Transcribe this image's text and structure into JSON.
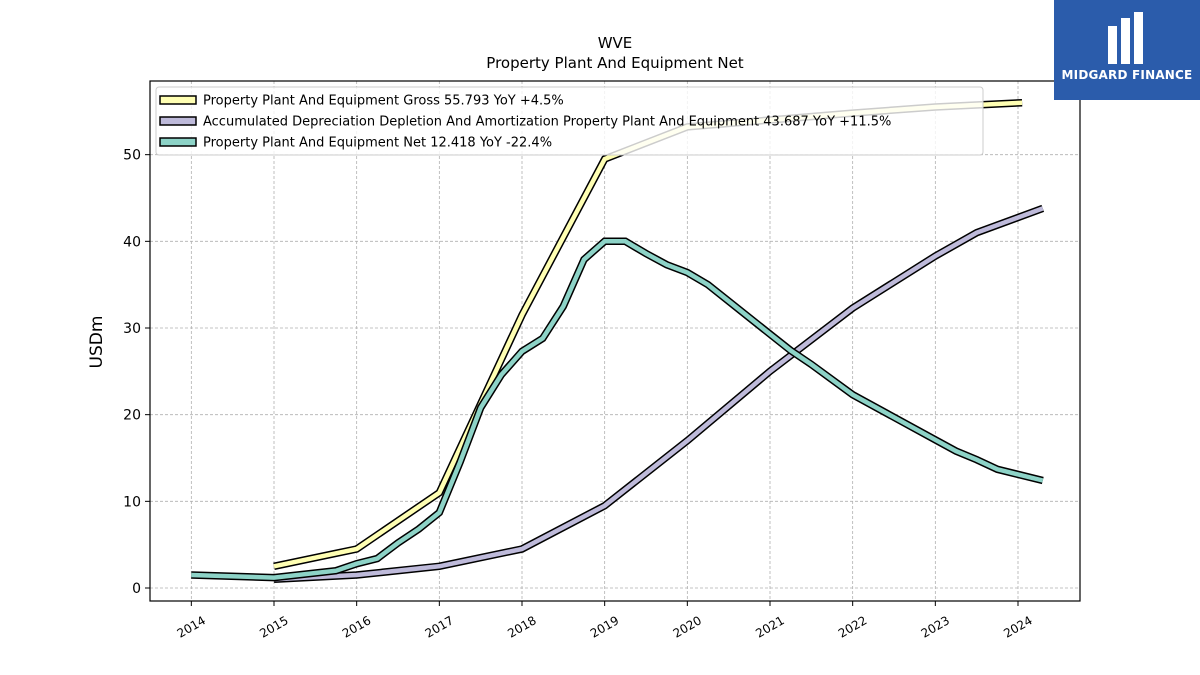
{
  "chart_data": {
    "type": "line",
    "title": "WVE",
    "subtitle": "Property Plant And Equipment Net",
    "ylabel": "USDm",
    "xlabel": "",
    "xlim": [
      2013.5,
      2024.75
    ],
    "ylim": [
      -1.5,
      58.5
    ],
    "x_ticks": [
      "2014",
      "2015",
      "2016",
      "2017",
      "2018",
      "2019",
      "2020",
      "2021",
      "2022",
      "2023",
      "2024"
    ],
    "y_ticks": [
      0,
      10,
      20,
      30,
      40,
      50
    ],
    "grid": true,
    "legend_position": "top-left",
    "series": [
      {
        "name": "Property Plant And Equipment Gross",
        "legend_label": "Property Plant And Equipment Gross  55.793 YoY +4.5%",
        "color": "#ffffb3",
        "points": [
          [
            2015.0,
            2.5
          ],
          [
            2015.75,
            4.0
          ],
          [
            2016.0,
            4.5
          ],
          [
            2017.0,
            11.0
          ],
          [
            2018.0,
            31.5
          ],
          [
            2019.0,
            49.5
          ],
          [
            2020.0,
            53.2
          ],
          [
            2021.0,
            54.0
          ],
          [
            2022.0,
            54.8
          ],
          [
            2023.0,
            55.5
          ],
          [
            2024.05,
            56.0
          ]
        ]
      },
      {
        "name": "Accumulated Depreciation Depletion And Amortization Property Plant And Equipment",
        "legend_label": "Accumulated Depreciation Depletion And Amortization Property Plant And Equipment  43.687 YoY +11.5%",
        "color": "#bebada",
        "points": [
          [
            2015.0,
            1.0
          ],
          [
            2016.0,
            1.5
          ],
          [
            2017.0,
            2.5
          ],
          [
            2018.0,
            4.5
          ],
          [
            2019.0,
            9.5
          ],
          [
            2020.0,
            17.0
          ],
          [
            2021.0,
            25.0
          ],
          [
            2022.0,
            32.3
          ],
          [
            2023.0,
            38.3
          ],
          [
            2023.5,
            41.0
          ],
          [
            2024.3,
            43.8
          ]
        ]
      },
      {
        "name": "Property Plant And Equipment Net",
        "legend_label": "Property Plant And Equipment Net  12.418 YoY -22.4%",
        "color": "#8dd3c7",
        "points": [
          [
            2014.0,
            1.5
          ],
          [
            2015.0,
            1.2
          ],
          [
            2015.75,
            2.0
          ],
          [
            2016.0,
            2.8
          ],
          [
            2016.25,
            3.4
          ],
          [
            2016.5,
            5.2
          ],
          [
            2016.75,
            6.8
          ],
          [
            2017.0,
            8.7
          ],
          [
            2017.25,
            14.5
          ],
          [
            2017.5,
            20.8
          ],
          [
            2017.75,
            24.6
          ],
          [
            2018.0,
            27.3
          ],
          [
            2018.25,
            28.8
          ],
          [
            2018.5,
            32.5
          ],
          [
            2018.75,
            37.9
          ],
          [
            2019.0,
            40.0
          ],
          [
            2019.25,
            40.0
          ],
          [
            2019.5,
            38.6
          ],
          [
            2019.75,
            37.3
          ],
          [
            2020.0,
            36.4
          ],
          [
            2020.25,
            35.0
          ],
          [
            2021.0,
            29.3
          ],
          [
            2021.25,
            27.4
          ],
          [
            2021.5,
            25.8
          ],
          [
            2022.0,
            22.3
          ],
          [
            2023.0,
            17.1
          ],
          [
            2023.25,
            15.8
          ],
          [
            2023.5,
            14.8
          ],
          [
            2023.75,
            13.7
          ],
          [
            2024.3,
            12.4
          ]
        ]
      }
    ]
  },
  "logo": {
    "text": "MIDGARD FINANCE"
  }
}
